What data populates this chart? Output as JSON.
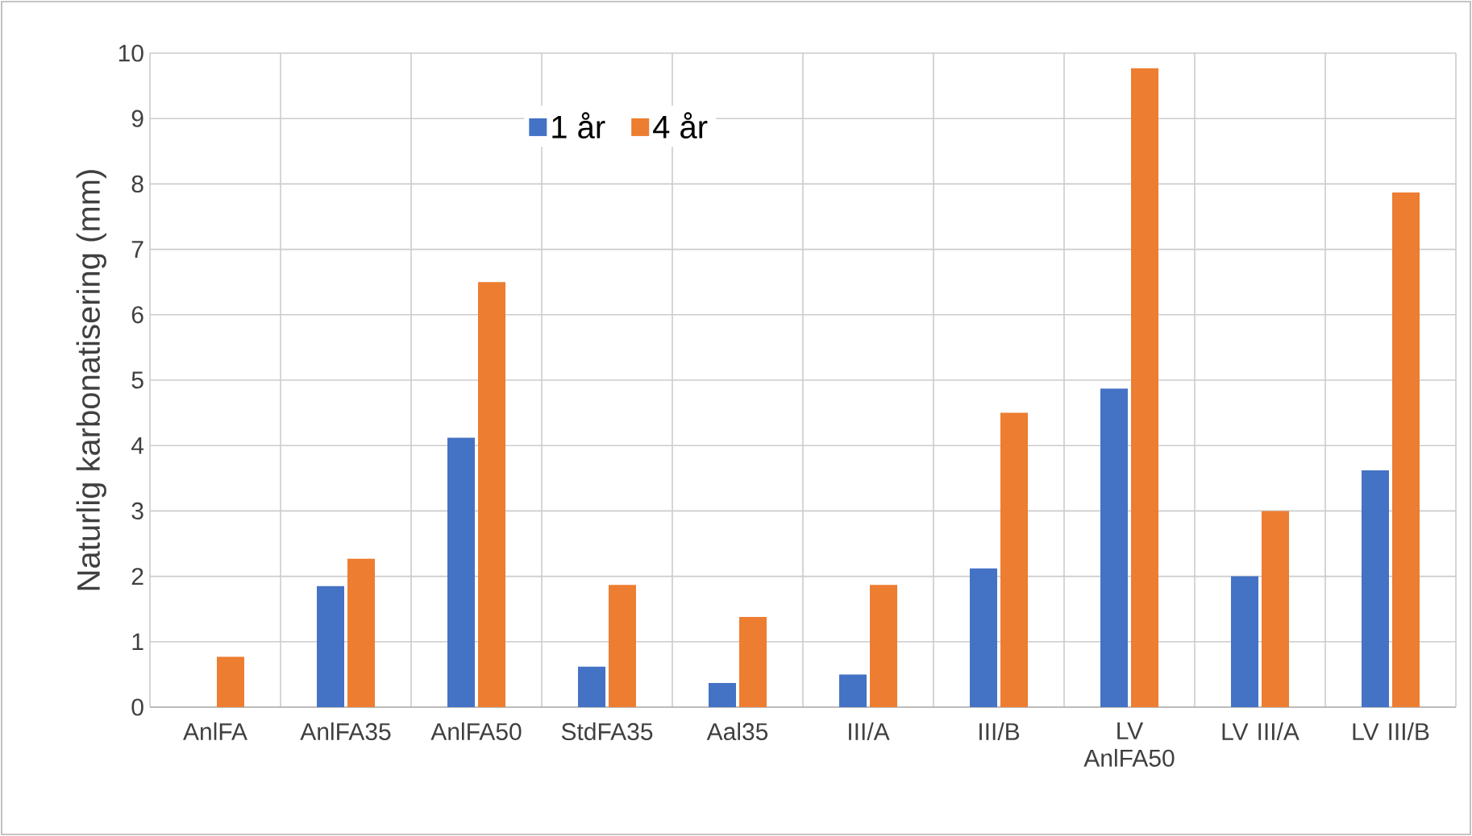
{
  "chart_data": {
    "type": "bar",
    "ylabel": "Naturlig karbonatisering (mm)",
    "categories": [
      "AnlFA",
      "AnlFA35",
      "AnlFA50",
      "StdFA35",
      "Aal35",
      "III/A",
      "III/B",
      "LV AnlFA50",
      "LV III/A",
      "LV III/B"
    ],
    "series": [
      {
        "name": "1 år",
        "color": "#4472c4",
        "values": [
          null,
          1.85,
          4.12,
          0.62,
          0.37,
          0.5,
          2.12,
          4.87,
          2.0,
          3.62
        ]
      },
      {
        "name": "4 år",
        "color": "#ed7d31",
        "values": [
          0.77,
          2.27,
          6.5,
          1.87,
          1.38,
          1.87,
          4.5,
          9.77,
          3.0,
          7.87
        ]
      }
    ],
    "ylim": [
      0,
      10
    ],
    "yticks": [
      0,
      1,
      2,
      3,
      4,
      5,
      6,
      7,
      8,
      9,
      10
    ],
    "grid": true,
    "legend": "top"
  }
}
